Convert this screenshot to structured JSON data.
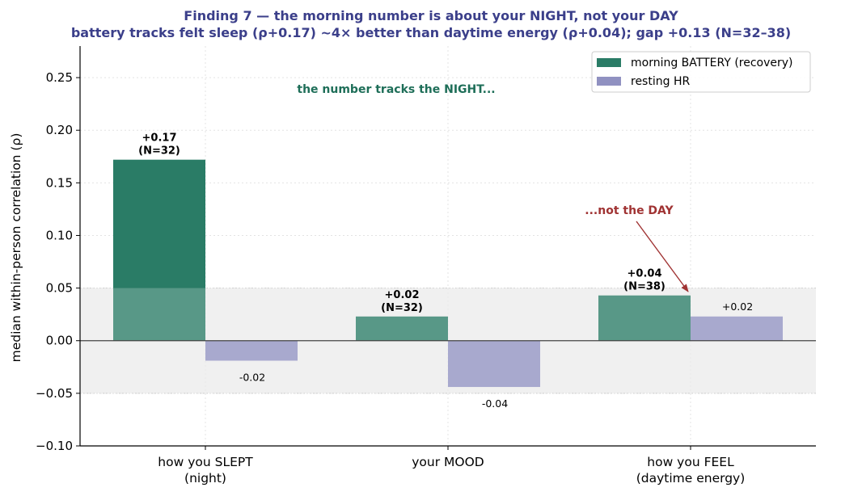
{
  "chart_data": {
    "type": "bar",
    "title": "Finding 7 — the morning number is about your NIGHT, not your DAY",
    "subtitle": "battery tracks felt sleep (ρ+0.17) ~4× better than daytime energy (ρ+0.04); gap +0.13 (N=32–38)",
    "xlabel": "",
    "ylabel": "median within-person correlation (ρ)",
    "ylim": [
      -0.1,
      0.28
    ],
    "yticks": [
      "−0.10",
      "−0.05",
      "0.00",
      "0.05",
      "0.10",
      "0.15",
      "0.20",
      "0.25"
    ],
    "ytick_values": [
      -0.1,
      -0.05,
      0.0,
      0.05,
      0.1,
      0.15,
      0.2,
      0.25
    ],
    "noise_band": [
      -0.05,
      0.05
    ],
    "grid": true,
    "legend_position": "top-right",
    "categories": [
      [
        "how you SLEPT",
        "(night)"
      ],
      [
        "your MOOD"
      ],
      [
        "how you FEEL",
        "(daytime energy)"
      ]
    ],
    "series": [
      {
        "name": "morning BATTERY (recovery)",
        "color": "#2a7c66",
        "values": [
          0.172,
          0.023,
          0.043
        ],
        "labels": [
          [
            "+0.17",
            "(N=32)"
          ],
          [
            "+0.02",
            "(N=32)"
          ],
          [
            "+0.04",
            "(N=38)"
          ]
        ]
      },
      {
        "name": "resting HR",
        "color": "#9091c1",
        "values": [
          -0.019,
          -0.044,
          0.023
        ],
        "labels": [
          [
            "-0.02"
          ],
          [
            "-0.04"
          ],
          [
            "+0.02"
          ]
        ]
      }
    ],
    "annotations": {
      "night": "the number tracks the NIGHT...",
      "day": "...not the DAY"
    }
  }
}
